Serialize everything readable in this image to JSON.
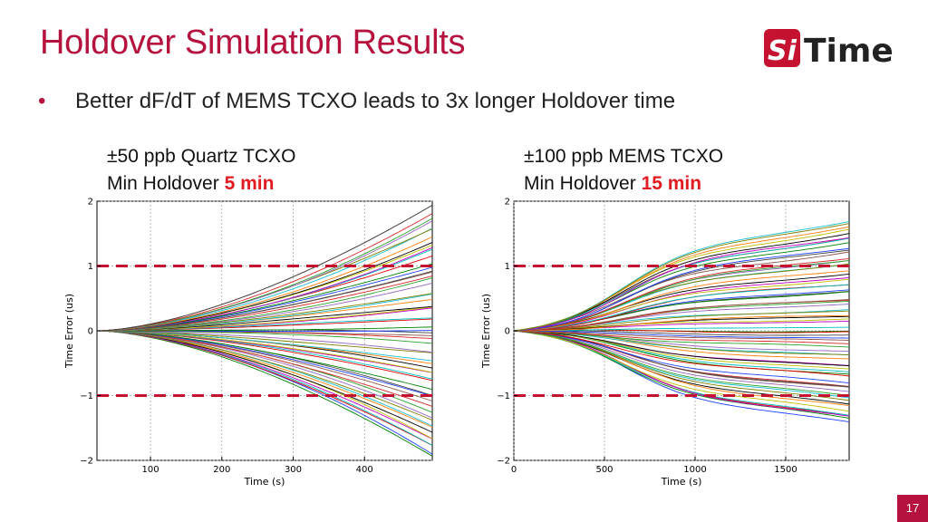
{
  "slide": {
    "title": "Holdover Simulation Results",
    "bullet": "Better dF/dT of MEMS TCXO leads to 3x longer Holdover time",
    "page_number": "17",
    "logo": {
      "text_si": "Si",
      "text_time": "Time",
      "accent": "#c41230"
    }
  },
  "panels": [
    {
      "line1": "±50 ppb Quartz TCXO",
      "line2_prefix": "Min Holdover ",
      "line2_highlight": "5 min"
    },
    {
      "line1": "±100 ppb MEMS TCXO",
      "line2_prefix": "Min Holdover ",
      "line2_highlight": "15 min"
    }
  ],
  "chart_data": [
    {
      "type": "line",
      "xlabel": "Time (s)",
      "ylabel": "Time Error (us)",
      "xlim": [
        25,
        495
      ],
      "ylim": [
        -2,
        2
      ],
      "xticks": [
        100,
        200,
        300,
        400
      ],
      "yticks": [
        -2,
        -1,
        0,
        1,
        2
      ],
      "ytick_labels": [
        "−2",
        "−1",
        "0",
        "1",
        "2"
      ],
      "grid": true,
      "threshold_lines": [
        1,
        -1
      ],
      "threshold_color": "#c41230",
      "bundle": {
        "count": 60,
        "end_min": -1.95,
        "end_max": 1.95,
        "curvature": "quadratic"
      }
    },
    {
      "type": "line",
      "xlabel": "Time (s)",
      "ylabel": "Time Error (us)",
      "xlim": [
        0,
        1850
      ],
      "ylim": [
        -2,
        2
      ],
      "xticks": [
        0,
        500,
        1000,
        1500
      ],
      "yticks": [
        -2,
        -1,
        0,
        1,
        2
      ],
      "ytick_labels": [
        "−2",
        "−1",
        "0",
        "1",
        "2"
      ],
      "grid": true,
      "threshold_lines": [
        1,
        -1
      ],
      "threshold_color": "#c41230",
      "bundle": {
        "count": 70,
        "end_min": -1.45,
        "end_max": 1.7,
        "curvature": "sigmoid"
      }
    }
  ]
}
